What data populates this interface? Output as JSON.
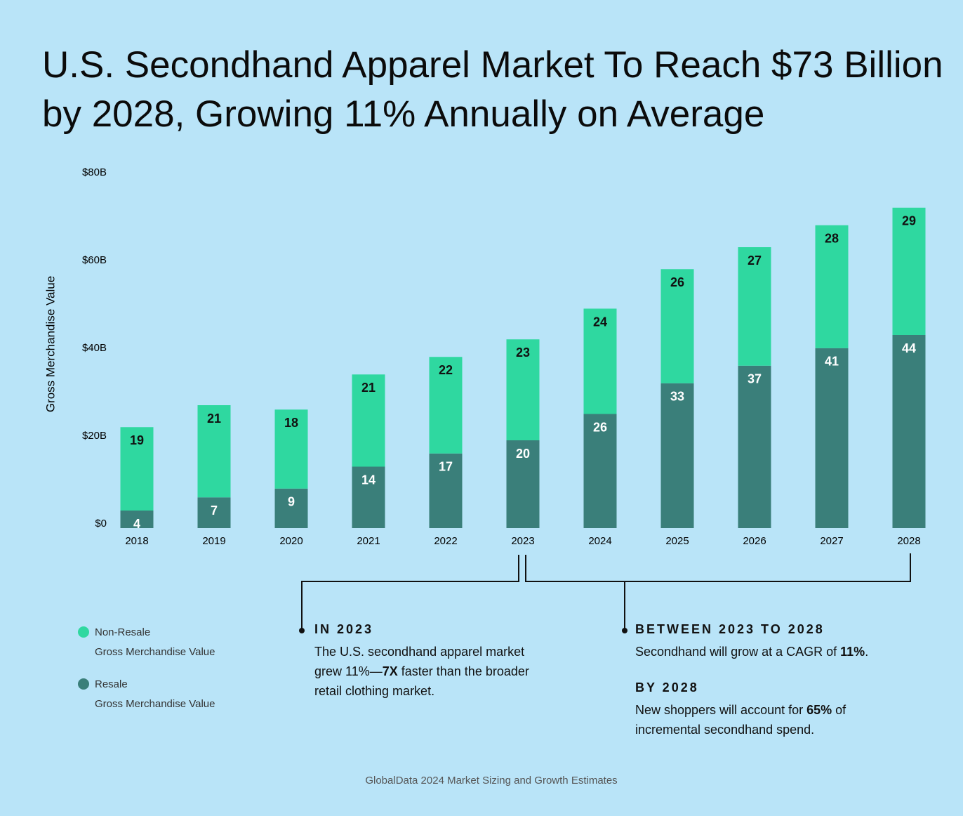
{
  "title": "U.S. Secondhand Apparel Market To Reach $73 Billion by 2028, Growing 11% Annually on Average",
  "chart_data": {
    "type": "stacked_bar",
    "y_label": "Gross Merchandise Value",
    "categories": [
      "2018",
      "2019",
      "2020",
      "2021",
      "2022",
      "2023",
      "2024",
      "2025",
      "2026",
      "2027",
      "2028"
    ],
    "series": [
      {
        "name": "Resale",
        "color": "#3a7f7a",
        "values": [
          4,
          7,
          9,
          14,
          17,
          20,
          26,
          33,
          37,
          41,
          44
        ]
      },
      {
        "name": "Non-Resale",
        "color": "#2fd8a0",
        "values": [
          19,
          21,
          18,
          21,
          22,
          23,
          24,
          26,
          27,
          28,
          29
        ]
      }
    ],
    "legend_subtitle": "Gross Merchandise Value",
    "ylim": [
      0,
      80
    ],
    "yticks": [
      {
        "value": 0,
        "label": "$0"
      },
      {
        "value": 20,
        "label": "$20B"
      },
      {
        "value": 40,
        "label": "$40B"
      },
      {
        "value": 60,
        "label": "$60B"
      },
      {
        "value": 80,
        "label": "$80B"
      }
    ],
    "grid": false
  },
  "annotations": [
    {
      "heading": "IN 2023",
      "body": [
        "The U.S. secondhand apparel market grew 11%—",
        "7X",
        " faster than the broader retail clothing market."
      ]
    },
    {
      "heading": "BETWEEN 2023 TO 2028",
      "body": [
        "Secondhand will grow at a CAGR of ",
        "11%",
        "."
      ]
    },
    {
      "heading": "BY 2028",
      "body": [
        "New shoppers will account for ",
        "65%",
        " of incremental secondhand spend."
      ]
    }
  ],
  "source": "GlobalData 2024 Market Sizing and Growth Estimates"
}
